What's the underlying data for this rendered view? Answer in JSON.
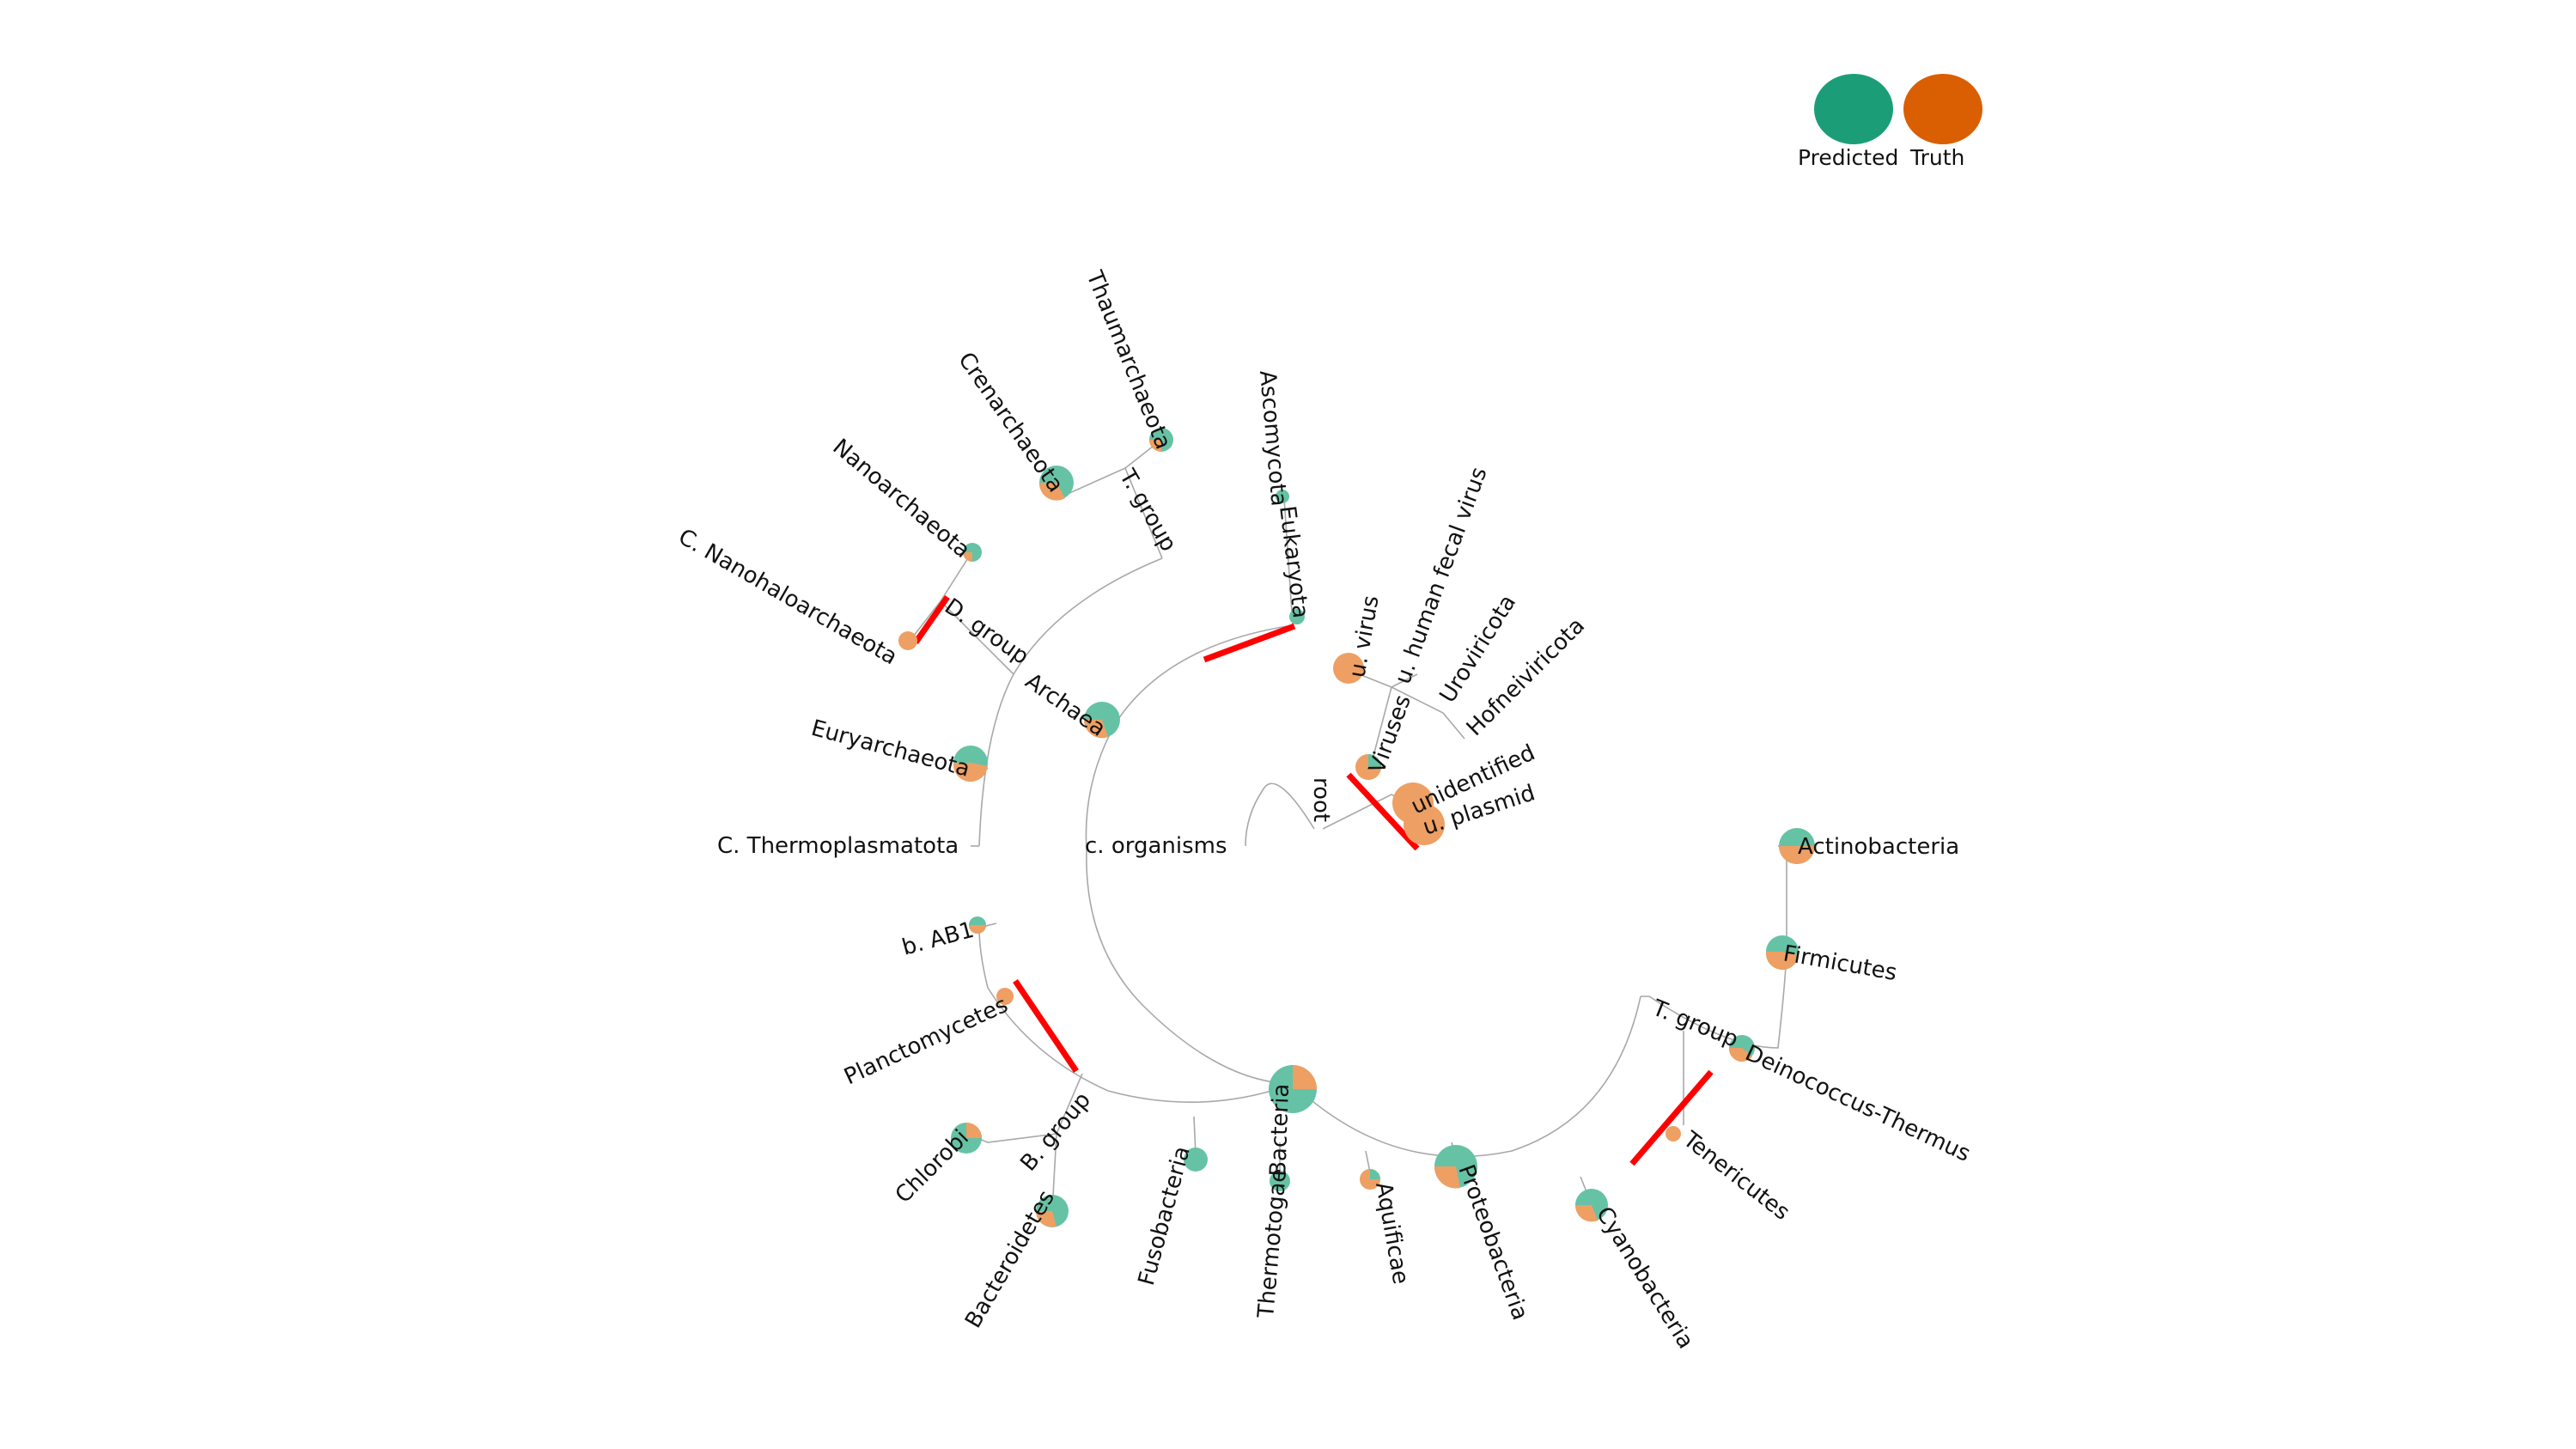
{
  "legend": {
    "items": [
      {
        "label": "Predicted",
        "color": "#1b9e77"
      },
      {
        "label": "Truth",
        "color": "#d95f02"
      }
    ]
  },
  "colors": {
    "predicted": "#1b9e77",
    "truth": "#d95f02",
    "branch": "#a8a8a8",
    "difference": "#ff0000"
  },
  "tree": {
    "nodes": [
      {
        "id": "root",
        "label": "root"
      },
      {
        "id": "c_organisms",
        "label": "c. organisms"
      },
      {
        "id": "archaea",
        "label": "Archaea"
      },
      {
        "id": "t_group_archaea",
        "label": "T. group"
      },
      {
        "id": "thaumarchaeota",
        "label": "Thaumarchaeota"
      },
      {
        "id": "crenarchaeota",
        "label": "Crenarchaeota"
      },
      {
        "id": "d_group",
        "label": "D. group"
      },
      {
        "id": "nanoarchaeota",
        "label": "Nanoarchaeota"
      },
      {
        "id": "c_nanohaloarchaeota",
        "label": "C. Nanohaloarchaeota"
      },
      {
        "id": "euryarchaeota",
        "label": "Euryarchaeota"
      },
      {
        "id": "c_thermoplasmatota",
        "label": "C. Thermoplasmatota"
      },
      {
        "id": "eukaryota",
        "label": "Eukaryota"
      },
      {
        "id": "ascomycota",
        "label": "Ascomycota"
      },
      {
        "id": "viruses",
        "label": "Viruses"
      },
      {
        "id": "u_virus",
        "label": "u. virus"
      },
      {
        "id": "u_human_fecal_virus",
        "label": "u. human fecal virus"
      },
      {
        "id": "uroviricota",
        "label": "Uroviricota"
      },
      {
        "id": "hofneiviricota",
        "label": "Hofneiviricota"
      },
      {
        "id": "unidentified",
        "label": "unidentified"
      },
      {
        "id": "u_plasmid",
        "label": "u. plasmid"
      },
      {
        "id": "bacteria",
        "label": "Bacteria"
      },
      {
        "id": "b_ab1",
        "label": "b. AB1"
      },
      {
        "id": "planctomycetes",
        "label": "Planctomycetes"
      },
      {
        "id": "b_group",
        "label": "B. group"
      },
      {
        "id": "chlorobi",
        "label": "Chlorobi"
      },
      {
        "id": "bacteroidetes",
        "label": "Bacteroidetes"
      },
      {
        "id": "fusobacteria",
        "label": "Fusobacteria"
      },
      {
        "id": "thermotogae",
        "label": "Thermotogae"
      },
      {
        "id": "aquificae",
        "label": "Aquificae"
      },
      {
        "id": "proteobacteria",
        "label": "Proteobacteria"
      },
      {
        "id": "cyanobacteria",
        "label": "Cyanobacteria"
      },
      {
        "id": "t_group_bacteria",
        "label": "T. group"
      },
      {
        "id": "tenericutes",
        "label": "Tenericutes"
      },
      {
        "id": "deinococcus_thermus",
        "label": "Deinococcus-Thermus"
      },
      {
        "id": "firmicutes",
        "label": "Firmicutes"
      },
      {
        "id": "actinobacteria",
        "label": "Actinobacteria"
      }
    ]
  }
}
